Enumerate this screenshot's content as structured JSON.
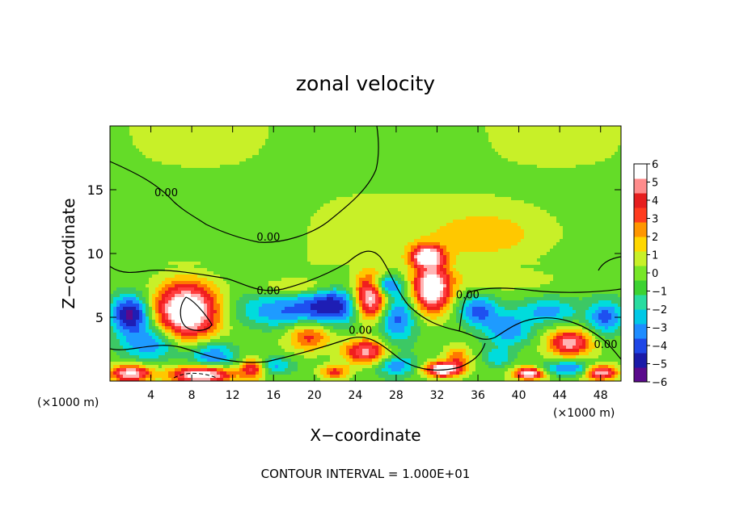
{
  "chart_data": {
    "type": "heatmap",
    "title": "zonal velocity",
    "xlabel": "X−coordinate",
    "ylabel": "Z−coordinate",
    "x_unit_label": "(×1000 m)",
    "footer": "CONTOUR INTERVAL = 1.000E+01",
    "xlim": [
      0,
      50
    ],
    "ylim": [
      0,
      20
    ],
    "x_ticks": [
      4,
      8,
      12,
      16,
      20,
      24,
      28,
      32,
      36,
      40,
      44,
      48
    ],
    "y_ticks": [
      5,
      10,
      15
    ],
    "colorbar": {
      "min": -6,
      "max": 6,
      "ticks": [
        6,
        5,
        4,
        3,
        2,
        1,
        0,
        -1,
        -2,
        -3,
        -4,
        -5,
        -6
      ],
      "tick_labels": [
        "6",
        "5",
        "4",
        "3",
        "2",
        "1",
        "0",
        "−1",
        "−2",
        "−3",
        "−4",
        "−5",
        "−6"
      ],
      "colors": [
        "#5a0a8c",
        "#1a1aa8",
        "#1e46e6",
        "#1e8cff",
        "#00c8e6",
        "#28dca0",
        "#3cd232",
        "#78e628",
        "#c8f028",
        "#ffd700",
        "#ff9600",
        "#ff3c1e",
        "#e61e1e",
        "#ff8c8c",
        "#ffffff"
      ],
      "bin_values": [
        -6,
        -5,
        -4,
        -3,
        -2,
        -1,
        0,
        1,
        2,
        3,
        4,
        5,
        6
      ]
    },
    "contour_labels": [
      {
        "text": "0.00",
        "x": 5.5,
        "z": 14.5
      },
      {
        "text": "0.00",
        "x": 15.5,
        "z": 11
      },
      {
        "text": "0.00",
        "x": 15.5,
        "z": 6.8
      },
      {
        "text": "0.00",
        "x": 24.5,
        "z": 3.7
      },
      {
        "text": "0.00",
        "x": 35,
        "z": 6.5
      },
      {
        "text": "0.00",
        "x": 48.5,
        "z": 2.6
      }
    ],
    "field_blobs": [
      {
        "cx": 7.5,
        "cz": 5.5,
        "rx": 3.2,
        "rz": 2.3,
        "v": 9
      },
      {
        "cx": 25.5,
        "cz": 6.5,
        "rx": 1.7,
        "rz": 1.8,
        "v": 8
      },
      {
        "cx": 31.5,
        "cz": 7.2,
        "rx": 1.9,
        "rz": 1.9,
        "v": 8
      },
      {
        "cx": 31,
        "cz": 9.8,
        "rx": 1.6,
        "rz": 0.9,
        "v": 7
      },
      {
        "cx": 25,
        "cz": 2.3,
        "rx": 2.2,
        "rz": 1.0,
        "v": 6
      },
      {
        "cx": 45,
        "cz": 3.0,
        "rx": 2.1,
        "rz": 1.0,
        "v": 6
      },
      {
        "cx": 19.5,
        "cz": 3.5,
        "rx": 2.2,
        "rz": 1.2,
        "v": 4
      },
      {
        "cx": 14,
        "cz": 1.0,
        "rx": 1.3,
        "rz": 0.8,
        "v": 5
      },
      {
        "cx": 34,
        "cz": 1.8,
        "rx": 1.3,
        "rz": 1.0,
        "v": 3
      },
      {
        "cx": 32.5,
        "cz": 0.9,
        "rx": 1.8,
        "rz": 0.6,
        "v": 8
      },
      {
        "cx": 41,
        "cz": 0.6,
        "rx": 1.5,
        "rz": 0.5,
        "v": 7
      },
      {
        "cx": 48,
        "cz": 0.7,
        "rx": 1.6,
        "rz": 0.6,
        "v": 7
      },
      {
        "cx": 2,
        "cz": 0.6,
        "rx": 2.0,
        "rz": 0.7,
        "v": 7
      },
      {
        "cx": 9,
        "cz": 0.5,
        "rx": 3.0,
        "rz": 0.7,
        "v": 8
      },
      {
        "cx": 22,
        "cz": 0.7,
        "rx": 1.5,
        "rz": 0.6,
        "v": 4
      },
      {
        "cx": 18.5,
        "cz": 7.4,
        "rx": 3.5,
        "rz": 0.6,
        "v": 2
      },
      {
        "cx": 37,
        "cz": 11.5,
        "rx": 6.0,
        "rz": 2.0,
        "v": 2
      },
      {
        "cx": 38,
        "cz": 8.0,
        "rx": 7.0,
        "rz": 1.0,
        "v": 1.2
      },
      {
        "cx": 2,
        "cz": 5.3,
        "rx": 2.0,
        "rz": 1.5,
        "v": -6
      },
      {
        "cx": 4,
        "cz": 3.0,
        "rx": 3.0,
        "rz": 1.5,
        "v": -4
      },
      {
        "cx": 10,
        "cz": 2.0,
        "rx": 2.5,
        "rz": 1.2,
        "v": -4
      },
      {
        "cx": 17,
        "cz": 5.5,
        "rx": 5.0,
        "rz": 1.4,
        "v": -3.5
      },
      {
        "cx": 22,
        "cz": 6.0,
        "rx": 3.0,
        "rz": 1.5,
        "v": -4.5
      },
      {
        "cx": 28,
        "cz": 5.0,
        "rx": 2.0,
        "rz": 2.0,
        "v": -4
      },
      {
        "cx": 27,
        "cz": 7.5,
        "rx": 1.5,
        "rz": 0.8,
        "v": -5
      },
      {
        "cx": 36,
        "cz": 5.5,
        "rx": 2.0,
        "rz": 1.2,
        "v": -4
      },
      {
        "cx": 39,
        "cz": 4.0,
        "rx": 2.5,
        "rz": 1.4,
        "v": -3.5
      },
      {
        "cx": 43,
        "cz": 5.5,
        "rx": 3.0,
        "rz": 1.0,
        "v": -3
      },
      {
        "cx": 48.5,
        "cz": 5.0,
        "rx": 1.8,
        "rz": 1.4,
        "v": -4
      },
      {
        "cx": 45,
        "cz": 1.0,
        "rx": 3.0,
        "rz": 0.6,
        "v": -4
      },
      {
        "cx": 28,
        "cz": 1.2,
        "rx": 2.0,
        "rz": 0.8,
        "v": -3
      },
      {
        "cx": 16,
        "cz": 1.2,
        "rx": 2.0,
        "rz": 0.7,
        "v": -3
      },
      {
        "cx": 38,
        "cz": 1.8,
        "rx": 1.5,
        "rz": 0.8,
        "v": -2.5
      }
    ]
  },
  "icon": "colorbar-legend"
}
